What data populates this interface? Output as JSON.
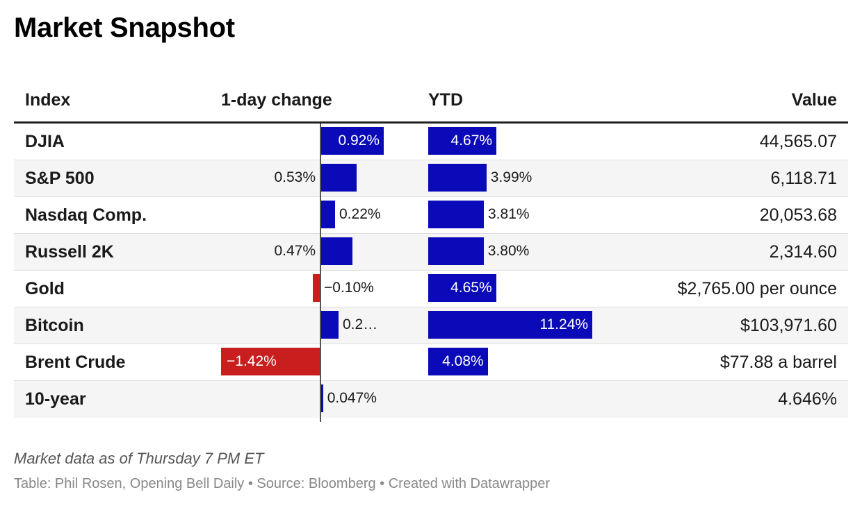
{
  "title": "Market Snapshot",
  "headers": {
    "index": "Index",
    "day": "1-day change",
    "ytd": "YTD",
    "value": "Value"
  },
  "colors": {
    "positive": "#0a0ab8",
    "negative": "#c81e1e",
    "row_alt": "#f5f5f5"
  },
  "chart_data": {
    "type": "table",
    "columns": [
      "Index",
      "1-day change",
      "YTD",
      "Value"
    ],
    "rows": [
      {
        "index": "DJIA",
        "day": 0.92,
        "day_label": "0.92%",
        "ytd": 4.67,
        "ytd_label": "4.67%",
        "value": "44,565.07"
      },
      {
        "index": "S&P 500",
        "day": 0.53,
        "day_label": "0.53%",
        "ytd": 3.99,
        "ytd_label": "3.99%",
        "value": "6,118.71"
      },
      {
        "index": "Nasdaq Comp.",
        "day": 0.22,
        "day_label": "0.22%",
        "ytd": 3.81,
        "ytd_label": "3.81%",
        "value": "20,053.68"
      },
      {
        "index": "Russell 2K",
        "day": 0.47,
        "day_label": "0.47%",
        "ytd": 3.8,
        "ytd_label": "3.80%",
        "value": "2,314.60"
      },
      {
        "index": "Gold",
        "day": -0.1,
        "day_label": "−0.10%",
        "ytd": 4.65,
        "ytd_label": "4.65%",
        "value": "$2,765.00 per ounce"
      },
      {
        "index": "Bitcoin",
        "day": 0.27,
        "day_label": "0.2…",
        "ytd": 11.24,
        "ytd_label": "11.24%",
        "value": "$103,971.60"
      },
      {
        "index": "Brent Crude",
        "day": -1.42,
        "day_label": "−1.42%",
        "ytd": 4.08,
        "ytd_label": "4.08%",
        "value": "$77.88 a barrel"
      },
      {
        "index": "10-year",
        "day": 0.047,
        "day_label": "0.047%",
        "ytd": null,
        "ytd_label": "",
        "value": "4.646%"
      }
    ]
  },
  "footer": {
    "note": "Market data as of Thursday 7 PM ET",
    "credit": "Table: Phil Rosen, Opening Bell Daily • Source: Bloomberg • Created with Datawrapper"
  }
}
